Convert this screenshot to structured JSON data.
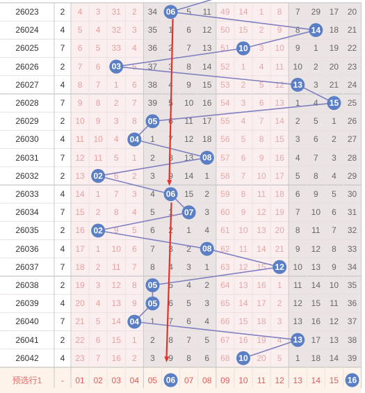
{
  "chart_data": {
    "type": "table",
    "columns": {
      "zone1": [
        "01",
        "02",
        "03",
        "04",
        "05",
        "06",
        "07",
        "08"
      ],
      "zone2": [
        "09",
        "10",
        "11",
        "12"
      ],
      "zone3": [
        "13",
        "14",
        "15",
        "16"
      ]
    },
    "rows": [
      {
        "issue": "26023",
        "sum": "2",
        "cells": [
          "4",
          "3",
          "31",
          "2",
          "34",
          "06",
          "5",
          "11",
          "49",
          "14",
          "1",
          "8",
          "7",
          "29",
          "17",
          "20"
        ],
        "hit": 6
      },
      {
        "issue": "26024",
        "sum": "4",
        "cells": [
          "5",
          "4",
          "32",
          "3",
          "35",
          "1",
          "6",
          "12",
          "50",
          "15",
          "2",
          "9",
          "8",
          "14",
          "18",
          "21"
        ],
        "hit": 14
      },
      {
        "issue": "26025",
        "sum": "7",
        "cells": [
          "6",
          "5",
          "33",
          "4",
          "36",
          "2",
          "7",
          "13",
          "51",
          "10",
          "3",
          "10",
          "9",
          "1",
          "19",
          "22"
        ],
        "hit": 10
      },
      {
        "issue": "26026",
        "sum": "2",
        "cells": [
          "7",
          "6",
          "03",
          "5",
          "37",
          "3",
          "8",
          "14",
          "52",
          "1",
          "4",
          "11",
          "10",
          "2",
          "20",
          "23"
        ],
        "hit": 3
      },
      {
        "issue": "26027",
        "sum": "4",
        "cells": [
          "8",
          "7",
          "1",
          "6",
          "38",
          "4",
          "9",
          "15",
          "53",
          "2",
          "5",
          "12",
          "13",
          "3",
          "21",
          "24"
        ],
        "hit": 13
      },
      {
        "issue": "26028",
        "sum": "7",
        "cells": [
          "9",
          "8",
          "2",
          "7",
          "39",
          "5",
          "10",
          "16",
          "54",
          "3",
          "6",
          "13",
          "1",
          "4",
          "15",
          "25"
        ],
        "hit": 15
      },
      {
        "issue": "26029",
        "sum": "2",
        "cells": [
          "10",
          "9",
          "3",
          "8",
          "05",
          "6",
          "11",
          "17",
          "55",
          "4",
          "7",
          "14",
          "2",
          "5",
          "1",
          "26"
        ],
        "hit": 5
      },
      {
        "issue": "26030",
        "sum": "4",
        "cells": [
          "11",
          "10",
          "4",
          "04",
          "1",
          "7",
          "12",
          "18",
          "56",
          "5",
          "8",
          "15",
          "3",
          "6",
          "2",
          "27"
        ],
        "hit": 4
      },
      {
        "issue": "26031",
        "sum": "7",
        "cells": [
          "12",
          "11",
          "5",
          "1",
          "2",
          "8",
          "13",
          "08",
          "57",
          "6",
          "9",
          "16",
          "4",
          "7",
          "3",
          "28"
        ],
        "hit": 8
      },
      {
        "issue": "26032",
        "sum": "2",
        "cells": [
          "13",
          "02",
          "6",
          "2",
          "3",
          "9",
          "14",
          "1",
          "58",
          "7",
          "10",
          "17",
          "5",
          "8",
          "4",
          "29"
        ],
        "hit": 2
      },
      {
        "issue": "26033",
        "sum": "4",
        "cells": [
          "14",
          "1",
          "7",
          "3",
          "4",
          "06",
          "15",
          "2",
          "59",
          "8",
          "11",
          "18",
          "6",
          "9",
          "5",
          "30"
        ],
        "hit": 6
      },
      {
        "issue": "26034",
        "sum": "7",
        "cells": [
          "15",
          "2",
          "8",
          "4",
          "5",
          "1",
          "07",
          "3",
          "60",
          "9",
          "12",
          "19",
          "7",
          "10",
          "6",
          "31"
        ],
        "hit": 7
      },
      {
        "issue": "26035",
        "sum": "2",
        "cells": [
          "16",
          "02",
          "9",
          "5",
          "6",
          "2",
          "1",
          "4",
          "61",
          "10",
          "13",
          "20",
          "8",
          "11",
          "7",
          "32"
        ],
        "hit": 2
      },
      {
        "issue": "26036",
        "sum": "4",
        "cells": [
          "17",
          "1",
          "10",
          "6",
          "7",
          "3",
          "2",
          "08",
          "62",
          "11",
          "14",
          "21",
          "9",
          "12",
          "8",
          "33"
        ],
        "hit": 8
      },
      {
        "issue": "26037",
        "sum": "7",
        "cells": [
          "18",
          "2",
          "11",
          "7",
          "8",
          "4",
          "3",
          "1",
          "63",
          "12",
          "15",
          "12",
          "10",
          "13",
          "9",
          "34"
        ],
        "hit": 12
      },
      {
        "issue": "26038",
        "sum": "2",
        "cells": [
          "19",
          "3",
          "12",
          "8",
          "05",
          "5",
          "4",
          "2",
          "64",
          "13",
          "16",
          "1",
          "11",
          "14",
          "10",
          "35"
        ],
        "hit": 5
      },
      {
        "issue": "26039",
        "sum": "4",
        "cells": [
          "20",
          "4",
          "13",
          "9",
          "05",
          "6",
          "5",
          "3",
          "65",
          "14",
          "17",
          "2",
          "12",
          "15",
          "11",
          "36"
        ],
        "hit": 5
      },
      {
        "issue": "26040",
        "sum": "7",
        "cells": [
          "21",
          "5",
          "14",
          "04",
          "1",
          "7",
          "6",
          "4",
          "66",
          "15",
          "18",
          "3",
          "13",
          "16",
          "12",
          "37"
        ],
        "hit": 4
      },
      {
        "issue": "26041",
        "sum": "2",
        "cells": [
          "22",
          "6",
          "15",
          "1",
          "2",
          "8",
          "7",
          "5",
          "67",
          "16",
          "19",
          "4",
          "13",
          "17",
          "13",
          "38"
        ],
        "hit": 13
      },
      {
        "issue": "26042",
        "sum": "4",
        "cells": [
          "23",
          "7",
          "16",
          "2",
          "3",
          "9",
          "8",
          "6",
          "68",
          "10",
          "20",
          "5",
          "1",
          "18",
          "14",
          "39"
        ],
        "hit": 10
      }
    ],
    "footer": {
      "label": "预选行1",
      "sum": "-",
      "cells": [
        "01",
        "02",
        "03",
        "04",
        "05",
        "06",
        "07",
        "08",
        "09",
        "10",
        "11",
        "12",
        "13",
        "14",
        "15",
        "16"
      ],
      "selected": [
        6,
        16
      ]
    }
  },
  "colors": {
    "ball": "#5b7fc4",
    "line": "#8080c0",
    "arrow": "#e8302a",
    "zone_pink": "#fbeeee",
    "zone_grey": "#ebe4e4",
    "footer_bg": "#fdf3ea"
  }
}
